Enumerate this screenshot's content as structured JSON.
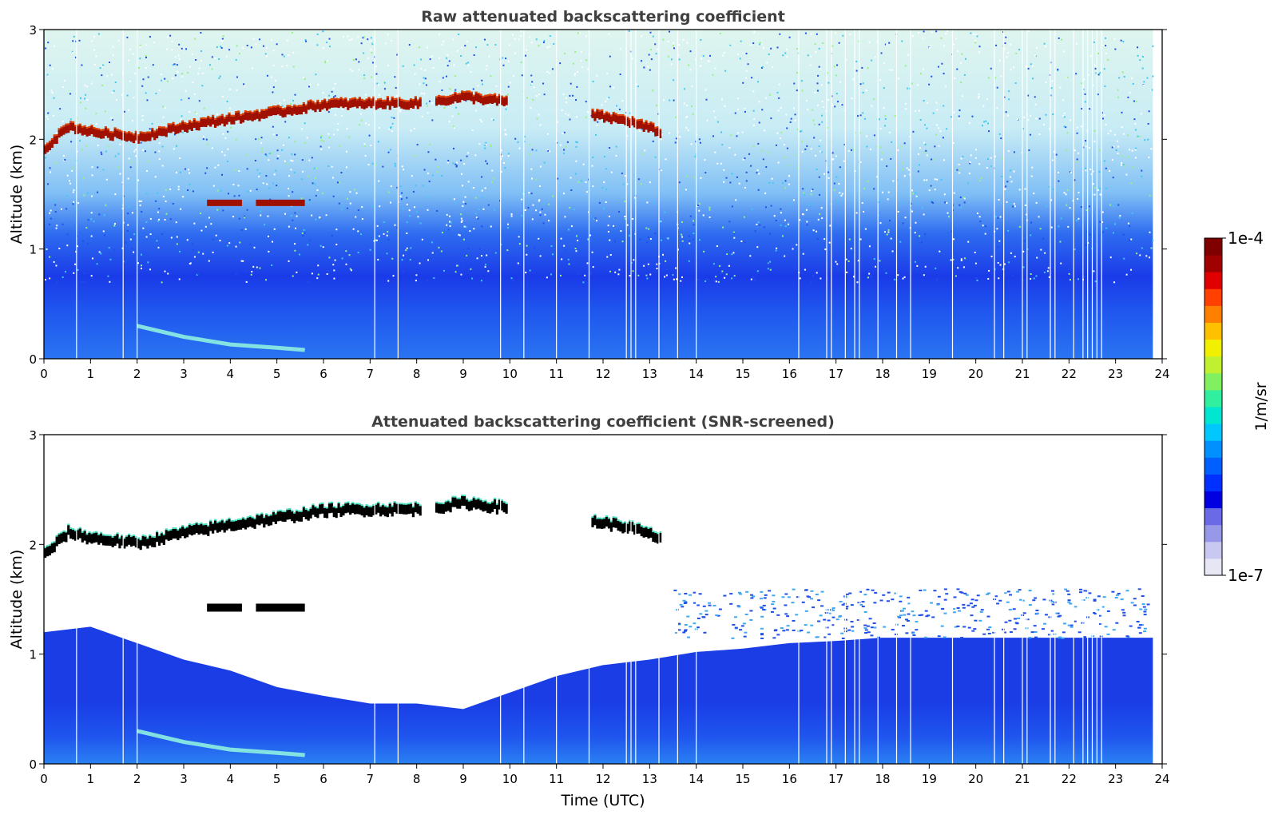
{
  "chart_data": [
    {
      "type": "heatmap",
      "title": "Raw attenuated backscattering coefficient",
      "xlabel": "",
      "ylabel": "Altitude (km)",
      "xlim": [
        0,
        24
      ],
      "ylim": [
        0,
        3
      ],
      "xticks": [
        "0",
        "1",
        "2",
        "3",
        "4",
        "5",
        "6",
        "7",
        "8",
        "9",
        "10",
        "11",
        "12",
        "13",
        "14",
        "15",
        "16",
        "17",
        "18",
        "19",
        "20",
        "21",
        "22",
        "23",
        "24"
      ],
      "yticks": [
        "0",
        "1",
        "2",
        "3"
      ],
      "features": {
        "cloud_layer_top_km": [
          [
            0.0,
            1.95
          ],
          [
            0.5,
            2.15
          ],
          [
            1.0,
            2.1
          ],
          [
            2.0,
            2.05
          ],
          [
            3.0,
            2.15
          ],
          [
            4.0,
            2.22
          ],
          [
            5.0,
            2.28
          ],
          [
            6.0,
            2.35
          ],
          [
            7.0,
            2.36
          ],
          [
            8.0,
            2.36
          ],
          [
            8.4,
            2.38
          ],
          [
            9.0,
            2.42
          ],
          [
            9.8,
            2.38
          ],
          [
            11.8,
            2.25
          ],
          [
            12.5,
            2.2
          ],
          [
            13.2,
            2.1
          ]
        ],
        "cloud_layer_gaps_utc": [
          [
            8.05,
            8.35
          ],
          [
            9.95,
            11.75
          ]
        ],
        "lower_cloud_km": 1.4,
        "lower_cloud_utc": [
          [
            3.5,
            4.25
          ],
          [
            4.55,
            5.6
          ]
        ],
        "missing_profiles_utc": [
          0.7,
          1.7,
          2.0,
          7.1,
          7.6,
          9.8,
          10.3,
          11.0,
          11.7,
          12.5,
          12.6,
          12.7,
          13.2,
          13.6,
          14.0,
          16.2,
          16.8,
          16.9,
          17.2,
          17.4,
          17.5,
          17.9,
          18.3,
          18.6,
          19.5,
          20.4,
          20.6,
          21.0,
          21.1,
          21.6,
          21.7,
          22.1,
          22.3,
          22.4,
          22.5,
          22.6,
          22.7
        ]
      }
    },
    {
      "type": "heatmap",
      "title": "Attenuated backscattering coefficient (SNR-screened)",
      "xlabel": "Time (UTC)",
      "ylabel": "Altitude (km)",
      "xlim": [
        0,
        24
      ],
      "ylim": [
        0,
        3
      ],
      "xticks": [
        "0",
        "1",
        "2",
        "3",
        "4",
        "5",
        "6",
        "7",
        "8",
        "9",
        "10",
        "11",
        "12",
        "13",
        "14",
        "15",
        "16",
        "17",
        "18",
        "19",
        "20",
        "21",
        "22",
        "23",
        "24"
      ],
      "yticks": [
        "0",
        "1",
        "2",
        "3"
      ],
      "features": {
        "signal_top_km": [
          [
            0.0,
            1.2
          ],
          [
            1.0,
            1.25
          ],
          [
            2.0,
            1.1
          ],
          [
            3.0,
            0.95
          ],
          [
            4.0,
            0.85
          ],
          [
            5.0,
            0.7
          ],
          [
            6.0,
            0.62
          ],
          [
            7.0,
            0.55
          ],
          [
            8.0,
            0.55
          ],
          [
            9.0,
            0.5
          ],
          [
            10.0,
            0.65
          ],
          [
            11.0,
            0.8
          ],
          [
            12.0,
            0.9
          ],
          [
            13.0,
            0.95
          ],
          [
            14.0,
            1.02
          ],
          [
            15.0,
            1.05
          ],
          [
            16.0,
            1.1
          ],
          [
            17.0,
            1.12
          ],
          [
            18.0,
            1.15
          ],
          [
            20.0,
            1.15
          ],
          [
            22.0,
            1.15
          ],
          [
            23.8,
            1.15
          ]
        ]
      }
    }
  ],
  "colorbar": {
    "label": "1/m/sr",
    "max_label": "1e-4",
    "min_label": "1e-7",
    "colors": [
      "#e6e6f5",
      "#c8c8f0",
      "#9898e8",
      "#6a6ae6",
      "#0000e0",
      "#0030ff",
      "#0060ff",
      "#0090ff",
      "#00c8ff",
      "#00e6d0",
      "#30f0a0",
      "#80f060",
      "#c0f030",
      "#f0f000",
      "#ffc000",
      "#ff8000",
      "#ff4000",
      "#e00000",
      "#a00000",
      "#800000"
    ]
  }
}
